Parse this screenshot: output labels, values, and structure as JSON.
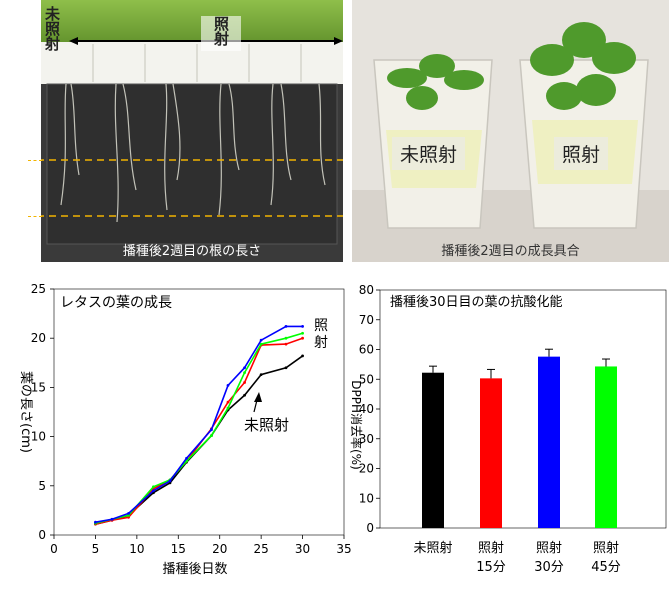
{
  "photos": {
    "roots": {
      "label_unirradiated": "未照射",
      "label_irradiated": "照射",
      "caption": "播種後2週目の根の長さ"
    },
    "growth": {
      "label_unirradiated": "未照射",
      "label_irradiated": "照射",
      "caption": "播種後2週目の成長具合"
    }
  },
  "chart_data": [
    {
      "type": "line",
      "title": "レタスの葉の成長",
      "xlabel": "播種後日数",
      "ylabel": "葉の長さ(cm)",
      "xlim": [
        0,
        35
      ],
      "ylim": [
        0,
        25
      ],
      "xticks": [
        0,
        5,
        10,
        15,
        20,
        25,
        30,
        35
      ],
      "yticks": [
        0,
        5,
        10,
        15,
        20,
        25
      ],
      "annotations": [
        "照",
        "射",
        "未照射"
      ],
      "series": [
        {
          "color": "#000000",
          "x": [
            5,
            7,
            9,
            12,
            14,
            16,
            19,
            21,
            23,
            25,
            28,
            30
          ],
          "y": [
            1.1,
            1.5,
            2.0,
            4.3,
            5.3,
            7.4,
            10.1,
            12.7,
            14.2,
            16.3,
            17.0,
            18.2
          ]
        },
        {
          "color": "#ff0000",
          "x": [
            5,
            7,
            9,
            12,
            14,
            16,
            19,
            21,
            23,
            25,
            28,
            30
          ],
          "y": [
            1.1,
            1.5,
            1.8,
            4.7,
            5.6,
            7.5,
            10.8,
            13.5,
            15.5,
            19.3,
            19.4,
            20.0
          ]
        },
        {
          "color": "#00ff00",
          "x": [
            5,
            7,
            9,
            12,
            14,
            16,
            19,
            21,
            23,
            25,
            28,
            30
          ],
          "y": [
            1.2,
            1.6,
            2.0,
            4.9,
            5.6,
            7.5,
            10.1,
            12.9,
            16.5,
            19.4,
            20.0,
            20.5
          ]
        },
        {
          "color": "#0000ff",
          "x": [
            5,
            7,
            9,
            12,
            14,
            16,
            19,
            21,
            23,
            25,
            28,
            30
          ],
          "y": [
            1.3,
            1.6,
            2.2,
            4.5,
            5.5,
            7.8,
            10.7,
            15.2,
            17.0,
            19.8,
            21.2,
            21.2
          ]
        }
      ]
    },
    {
      "type": "bar",
      "title": "播種後30日目の葉の抗酸化能",
      "ylabel": "DPPH消去率(%)",
      "ylim": [
        0,
        80
      ],
      "yticks": [
        0,
        10,
        20,
        30,
        40,
        50,
        60,
        70,
        80
      ],
      "categories": [
        "未照射",
        "照射\n15分",
        "照射\n30分",
        "照射\n45分"
      ],
      "values": [
        52.2,
        50.3,
        57.6,
        54.3
      ],
      "errors": [
        2.2,
        3.0,
        2.5,
        2.5
      ],
      "colors": [
        "#000000",
        "#ff0000",
        "#0000ff",
        "#00ff00"
      ]
    }
  ]
}
